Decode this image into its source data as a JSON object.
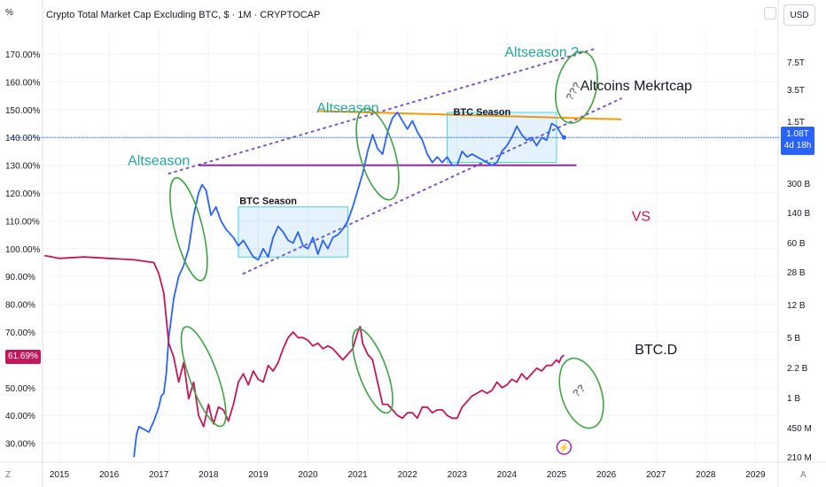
{
  "header": {
    "scale_label": "%",
    "title": "Crypto Total Market Cap Excluding BTC, $ · 1M · CRYPTOCAP",
    "currency": "USD"
  },
  "footer": {
    "z_label": "Z",
    "a_label": "A"
  },
  "badges": {
    "price_value": "1.08T",
    "price_countdown": "4d 18h",
    "btcd_value": "61.69%"
  },
  "chart_data": {
    "type": "line",
    "title": "Crypto Total Market Cap Excluding BTC, $ · 1M · CRYPTOCAP",
    "x_ticks": [
      "2015",
      "2016",
      "2017",
      "2018",
      "2019",
      "2020",
      "2021",
      "2022",
      "2023",
      "2024",
      "2025",
      "2026",
      "2027",
      "2028",
      "2029"
    ],
    "left_axis": {
      "label": "%",
      "ticks": [
        "170.00%",
        "160.00%",
        "150.00%",
        "140.00%",
        "130.00%",
        "120.00%",
        "110.00%",
        "100.00%",
        "90.00%",
        "80.00%",
        "70.00%",
        "60.00%",
        "50.00%",
        "40.00%",
        "30.00%"
      ],
      "range": [
        25,
        178
      ]
    },
    "right_axis": {
      "label": "USD",
      "ticks": [
        "7.5T",
        "3.5T",
        "1.5T",
        "300 B",
        "140 B",
        "60 B",
        "28 B",
        "12 B",
        "5 B",
        "2.2 B",
        "1 B",
        "450 M",
        "210 M"
      ]
    },
    "series": [
      {
        "name": "Crypto Total Market Cap Excluding BTC",
        "color": "#2962ff",
        "points": [
          [
            2016.5,
            25
          ],
          [
            2016.55,
            33
          ],
          [
            2016.6,
            36
          ],
          [
            2016.7,
            35
          ],
          [
            2016.8,
            34
          ],
          [
            2016.9,
            38
          ],
          [
            2017.0,
            43
          ],
          [
            2017.05,
            47
          ],
          [
            2017.1,
            48
          ],
          [
            2017.15,
            55
          ],
          [
            2017.2,
            68
          ],
          [
            2017.3,
            82
          ],
          [
            2017.4,
            90
          ],
          [
            2017.5,
            94
          ],
          [
            2017.6,
            100
          ],
          [
            2017.7,
            112
          ],
          [
            2017.8,
            120
          ],
          [
            2017.87,
            123
          ],
          [
            2017.95,
            121
          ],
          [
            2018.05,
            112
          ],
          [
            2018.15,
            115
          ],
          [
            2018.25,
            110
          ],
          [
            2018.35,
            107
          ],
          [
            2018.5,
            104
          ],
          [
            2018.6,
            101
          ],
          [
            2018.7,
            103
          ],
          [
            2018.8,
            100
          ],
          [
            2018.9,
            97
          ],
          [
            2019.0,
            96
          ],
          [
            2019.1,
            100
          ],
          [
            2019.2,
            97
          ],
          [
            2019.3,
            104
          ],
          [
            2019.4,
            108
          ],
          [
            2019.5,
            106
          ],
          [
            2019.6,
            103
          ],
          [
            2019.7,
            102
          ],
          [
            2019.8,
            106
          ],
          [
            2019.9,
            101
          ],
          [
            2020.0,
            100
          ],
          [
            2020.1,
            104
          ],
          [
            2020.2,
            98
          ],
          [
            2020.3,
            103
          ],
          [
            2020.4,
            100
          ],
          [
            2020.5,
            104
          ],
          [
            2020.6,
            105
          ],
          [
            2020.7,
            107
          ],
          [
            2020.8,
            110
          ],
          [
            2020.9,
            115
          ],
          [
            2021.0,
            121
          ],
          [
            2021.1,
            127
          ],
          [
            2021.2,
            135
          ],
          [
            2021.3,
            141
          ],
          [
            2021.4,
            136
          ],
          [
            2021.5,
            134
          ],
          [
            2021.6,
            142
          ],
          [
            2021.7,
            147
          ],
          [
            2021.8,
            149
          ],
          [
            2021.9,
            146
          ],
          [
            2022.0,
            143
          ],
          [
            2022.1,
            146
          ],
          [
            2022.2,
            142
          ],
          [
            2022.3,
            139
          ],
          [
            2022.4,
            134
          ],
          [
            2022.5,
            131
          ],
          [
            2022.6,
            133
          ],
          [
            2022.7,
            131
          ],
          [
            2022.8,
            133
          ],
          [
            2022.9,
            130
          ],
          [
            2023.0,
            130
          ],
          [
            2023.1,
            135
          ],
          [
            2023.2,
            133
          ],
          [
            2023.3,
            134
          ],
          [
            2023.4,
            133
          ],
          [
            2023.5,
            132
          ],
          [
            2023.6,
            131
          ],
          [
            2023.7,
            130
          ],
          [
            2023.8,
            131
          ],
          [
            2023.9,
            135
          ],
          [
            2024.0,
            137
          ],
          [
            2024.1,
            140
          ],
          [
            2024.2,
            144
          ],
          [
            2024.3,
            141
          ],
          [
            2024.4,
            139
          ],
          [
            2024.5,
            140
          ],
          [
            2024.6,
            137
          ],
          [
            2024.7,
            140
          ],
          [
            2024.8,
            139
          ],
          [
            2024.9,
            145
          ],
          [
            2025.0,
            144
          ],
          [
            2025.1,
            141
          ],
          [
            2025.15,
            140
          ]
        ]
      },
      {
        "name": "BTC.D",
        "color": "#c2185b",
        "points": [
          [
            2014.7,
            97.5
          ],
          [
            2015.0,
            96.5
          ],
          [
            2015.5,
            97
          ],
          [
            2016.0,
            96.5
          ],
          [
            2016.5,
            96
          ],
          [
            2016.9,
            95
          ],
          [
            2017.0,
            91
          ],
          [
            2017.1,
            84
          ],
          [
            2017.2,
            66
          ],
          [
            2017.3,
            61
          ],
          [
            2017.4,
            52
          ],
          [
            2017.5,
            59
          ],
          [
            2017.6,
            46
          ],
          [
            2017.7,
            52
          ],
          [
            2017.8,
            40
          ],
          [
            2017.9,
            36
          ],
          [
            2018.0,
            44
          ],
          [
            2018.05,
            40
          ],
          [
            2018.1,
            37
          ],
          [
            2018.2,
            43
          ],
          [
            2018.3,
            42
          ],
          [
            2018.4,
            38
          ],
          [
            2018.5,
            44
          ],
          [
            2018.6,
            52
          ],
          [
            2018.7,
            55
          ],
          [
            2018.8,
            51
          ],
          [
            2018.9,
            56
          ],
          [
            2019.0,
            53
          ],
          [
            2019.1,
            52
          ],
          [
            2019.2,
            58
          ],
          [
            2019.3,
            56
          ],
          [
            2019.4,
            59
          ],
          [
            2019.5,
            64
          ],
          [
            2019.6,
            68
          ],
          [
            2019.7,
            70
          ],
          [
            2019.8,
            68
          ],
          [
            2019.9,
            68
          ],
          [
            2020.0,
            67
          ],
          [
            2020.1,
            65
          ],
          [
            2020.2,
            66
          ],
          [
            2020.3,
            64
          ],
          [
            2020.4,
            65
          ],
          [
            2020.5,
            64
          ],
          [
            2020.6,
            62
          ],
          [
            2020.7,
            60
          ],
          [
            2020.8,
            62
          ],
          [
            2020.9,
            64
          ],
          [
            2021.0,
            70
          ],
          [
            2021.05,
            72
          ],
          [
            2021.1,
            66
          ],
          [
            2021.2,
            62
          ],
          [
            2021.3,
            60
          ],
          [
            2021.4,
            52
          ],
          [
            2021.5,
            44
          ],
          [
            2021.6,
            44
          ],
          [
            2021.7,
            42
          ],
          [
            2021.8,
            40
          ],
          [
            2021.9,
            39
          ],
          [
            2022.0,
            41
          ],
          [
            2022.1,
            41
          ],
          [
            2022.2,
            39
          ],
          [
            2022.3,
            43
          ],
          [
            2022.4,
            43
          ],
          [
            2022.5,
            41
          ],
          [
            2022.6,
            42
          ],
          [
            2022.7,
            42
          ],
          [
            2022.8,
            40
          ],
          [
            2022.9,
            39
          ],
          [
            2023.0,
            39
          ],
          [
            2023.1,
            43
          ],
          [
            2023.2,
            45
          ],
          [
            2023.3,
            47
          ],
          [
            2023.4,
            48
          ],
          [
            2023.5,
            49
          ],
          [
            2023.6,
            48
          ],
          [
            2023.7,
            49
          ],
          [
            2023.8,
            52
          ],
          [
            2023.9,
            50
          ],
          [
            2024.0,
            51
          ],
          [
            2024.1,
            53
          ],
          [
            2024.2,
            52
          ],
          [
            2024.3,
            55
          ],
          [
            2024.4,
            53
          ],
          [
            2024.5,
            55
          ],
          [
            2024.6,
            57
          ],
          [
            2024.7,
            56
          ],
          [
            2024.8,
            58
          ],
          [
            2024.9,
            58
          ],
          [
            2025.0,
            60
          ],
          [
            2025.05,
            59
          ],
          [
            2025.1,
            61
          ],
          [
            2025.15,
            61.7
          ]
        ]
      }
    ],
    "annotations": {
      "texts": [
        {
          "text": "Altseason",
          "color": "#26a69a",
          "x": 2017.0,
          "y": 130
        },
        {
          "text": "Altseason",
          "color": "#26a69a",
          "x": 2020.8,
          "y": 149
        },
        {
          "text": "Altseason ?",
          "color": "#26a69a",
          "x": 2024.7,
          "y": 169
        },
        {
          "text": "BTC Season",
          "color": "#131722",
          "x": 2019.2,
          "y": 116
        },
        {
          "text": "BTC Season",
          "color": "#131722",
          "x": 2023.5,
          "y": 148
        },
        {
          "text": "Altcoins Mekrtcap",
          "color": "#131722",
          "x": 2026.6,
          "y": 157
        },
        {
          "text": "VS",
          "color": "#c2185b",
          "x": 2026.7,
          "y": 110
        },
        {
          "text": "BTC.D",
          "color": "#131722",
          "x": 2027.0,
          "y": 62
        },
        {
          "text": "???",
          "color": "#787b86",
          "x": 2025.4,
          "y": 156
        },
        {
          "text": "??",
          "color": "#787b86",
          "x": 2025.5,
          "y": 48
        }
      ],
      "boxes": [
        {
          "x0": 2018.6,
          "x1": 2020.8,
          "y0": 97,
          "y1": 115
        },
        {
          "x0": 2022.8,
          "x1": 2025.0,
          "y0": 131,
          "y1": 149
        }
      ],
      "lines": [
        {
          "style": "dotted",
          "color": "#7e57c2",
          "from": [
            2017.2,
            127
          ],
          "to": [
            2025.8,
            172
          ]
        },
        {
          "style": "dotted",
          "color": "#7e57c2",
          "from": [
            2018.7,
            91
          ],
          "to": [
            2026.3,
            154
          ]
        },
        {
          "style": "solid",
          "color": "#8e24aa",
          "from": [
            2017.8,
            130
          ],
          "to": [
            2025.4,
            130
          ]
        },
        {
          "style": "solid",
          "color": "#ff9800",
          "from": [
            2020.2,
            149.5
          ],
          "to": [
            2026.3,
            146.5
          ]
        },
        {
          "style": "dotted",
          "color": "#2962ff",
          "from": [
            2014.0,
            140
          ],
          "to": [
            2029.5,
            140
          ]
        }
      ],
      "ellipses": [
        {
          "cx": 2017.6,
          "cy": 107,
          "rx": 0.28,
          "ry": 19,
          "color": "#43a047",
          "angle": -14
        },
        {
          "cx": 2021.4,
          "cy": 134,
          "rx": 0.35,
          "ry": 17,
          "color": "#43a047",
          "angle": -16
        },
        {
          "cx": 2025.4,
          "cy": 158,
          "rx": 0.4,
          "ry": 13,
          "color": "#43a047",
          "angle": 12
        },
        {
          "cx": 2017.9,
          "cy": 54,
          "rx": 0.28,
          "ry": 19,
          "color": "#43a047",
          "angle": -20
        },
        {
          "cx": 2021.3,
          "cy": 56,
          "rx": 0.28,
          "ry": 16,
          "color": "#43a047",
          "angle": -20
        },
        {
          "cx": 2025.5,
          "cy": 48,
          "rx": 0.4,
          "ry": 13,
          "color": "#43a047",
          "angle": -18
        }
      ]
    }
  }
}
